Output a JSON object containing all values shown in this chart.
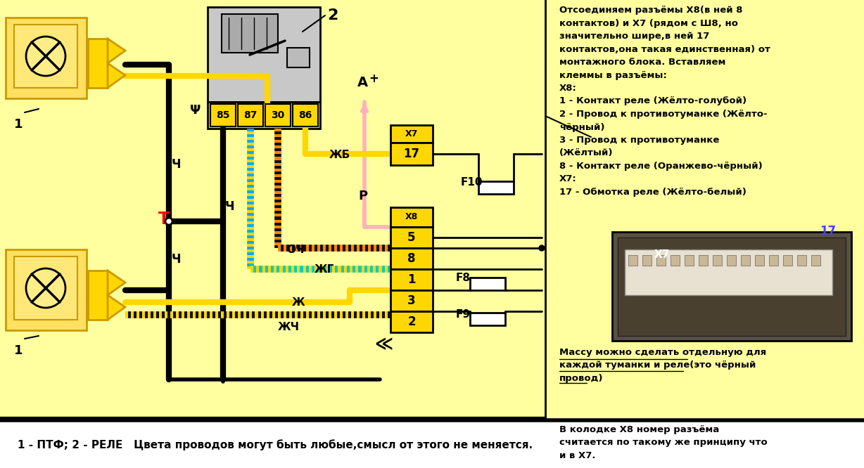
{
  "bg_left": "#FFFFA0",
  "bg_right": "#FFFFA0",
  "bg_bottom": "#FFFFFF",
  "yellow": "#FFD700",
  "dark_yellow": "#C8A000",
  "relay_gray": "#BBBBBB",
  "black": "#000000",
  "red": "#FF0000",
  "pink": "#FFB6C1",
  "orange": "#FF8C00",
  "blue_wire": "#00AAFF",
  "cyan_wire": "#00CCCC",
  "white": "#FFFFFF",
  "title_text": "1 - ПТФ; 2 - РЕЛЕ   Цвета проводов могут быть любые,смысл от этого не меняется.",
  "right_instruction": "Отсоединяем разъёмы Х8(в ней 8\nконтактов) и Х7 (рядом с Ш8, но\nзначительно шире,в ней 17\nконтактов,она такая единственная) от\nмонтажного блока. Вставляем\nклеммы в разъёмы:\nХ8:\n1 - Контакт реле (Жёлто-голубой)\n2 - Провод к противотуманке (Жёлто-\nчёрный)\n3 - Провод к противотуманке\n(Жёлтый)\n8 - Контакт реле (Оранжево-чёрный)\nХ7:\n17 - Обмотка реле (Жёлто-белый)",
  "bottom_note1": "Массу можно сделать отдельную для\nкаждой туманки и реле(это чёрный\nпровод)",
  "bottom_note2": "В колодке Х8 номер разъёма\nсчитается по такому же принципу что\nи в Х7."
}
